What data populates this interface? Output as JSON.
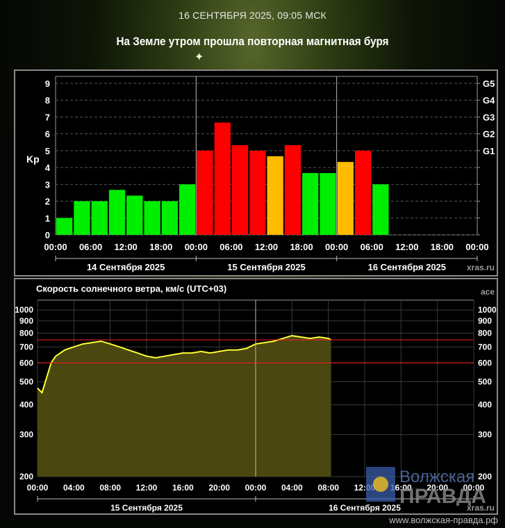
{
  "header": {
    "date": "16 СЕНТЯБРЯ 2025, 09:05 МСК",
    "headline": "На Земле утром прошла повторная магнитная буря"
  },
  "chart_data": [
    {
      "type": "bar",
      "ylabel": "Kp",
      "ylim": [
        0,
        9
      ],
      "y_ticks": [
        "0",
        "1",
        "2",
        "3",
        "4",
        "5",
        "6",
        "7",
        "8",
        "9"
      ],
      "g_labels": [
        "G1",
        "G2",
        "G3",
        "G4",
        "G5"
      ],
      "x_tick_labels": [
        "00:00",
        "06:00",
        "12:00",
        "18:00",
        "00:00",
        "06:00",
        "12:00",
        "18:00",
        "00:00",
        "06:00",
        "12:00",
        "18:00",
        "00:00"
      ],
      "day_labels": [
        "14 Сентября 2025",
        "15 Сентября 2025",
        "16 Сентября 2025"
      ],
      "source": "xras.ru",
      "values": [
        1,
        2,
        2,
        2.67,
        2.33,
        2,
        2,
        3,
        5,
        6.67,
        5.33,
        5,
        4.67,
        5.33,
        3.67,
        3.67,
        4.33,
        5,
        3
      ],
      "colors": {
        "low": "#00ee00",
        "mid": "#ffbb00",
        "high": "#ff0000",
        "grid": "#555555"
      }
    },
    {
      "type": "line",
      "title": "Скорость солнечного ветра, км/с (UTC+03)",
      "source_top": "ace",
      "source_bottom": "xras.ru",
      "y_scale": "log",
      "ylim": [
        200,
        1100
      ],
      "y_ticks": [
        "200",
        "300",
        "400",
        "500",
        "600",
        "700",
        "800",
        "900",
        "1000"
      ],
      "x_tick_labels": [
        "00:00",
        "04:00",
        "08:00",
        "12:00",
        "16:00",
        "20:00",
        "00:00",
        "04:00",
        "08:00",
        "12:00",
        "16:00",
        "20:00",
        "00:00"
      ],
      "day_labels": [
        "15 Сентября 2025",
        "16 Сентября 2025"
      ],
      "threshold_lines": [
        600,
        750
      ],
      "x_hours": [
        0,
        0.5,
        1,
        1.5,
        2,
        3,
        4,
        5,
        6,
        7,
        8,
        9,
        10,
        11,
        12,
        13,
        14,
        15,
        16,
        17,
        18,
        19,
        20,
        21,
        22,
        23,
        24,
        25,
        26,
        27,
        28,
        29,
        30,
        31,
        32,
        32.3
      ],
      "values": [
        470,
        450,
        520,
        600,
        640,
        680,
        700,
        720,
        730,
        740,
        720,
        700,
        680,
        660,
        640,
        630,
        640,
        650,
        660,
        660,
        670,
        660,
        670,
        680,
        680,
        690,
        720,
        730,
        740,
        760,
        780,
        770,
        760,
        770,
        760,
        750
      ],
      "colors": {
        "line": "#ffff30",
        "fill": "#4a4710",
        "threshold": "#ff2020"
      }
    }
  ],
  "watermark": {
    "brand": "Волжская правда",
    "url": "www.волжская-правда.рф"
  }
}
